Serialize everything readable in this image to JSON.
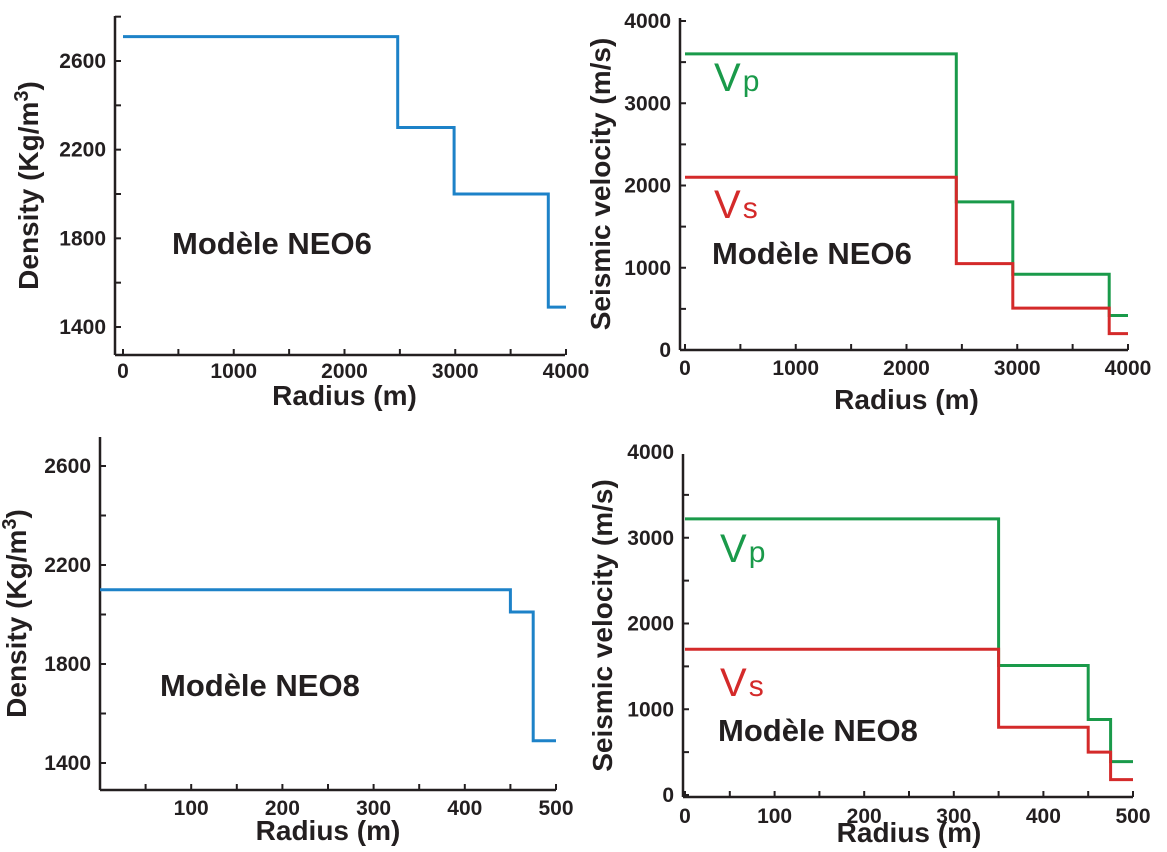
{
  "chart_data": [
    {
      "type": "line",
      "step": true,
      "label": "Modèle NEO6",
      "xlabel": "Radius (m)",
      "ylabel": "Density (Kg/m3)",
      "xlim": [
        0,
        4000
      ],
      "ylim": [
        1300,
        2800
      ],
      "xticks": [
        0,
        1000,
        2000,
        3000,
        4000
      ],
      "yticks": [
        1400,
        1800,
        2200,
        2600
      ],
      "series": [
        {
          "color": "#1d82c8",
          "x": [
            0,
            2480,
            2480,
            2990,
            2990,
            3840,
            3840,
            4000
          ],
          "y": [
            2710,
            2710,
            2300,
            2300,
            2000,
            2000,
            1490,
            1490
          ]
        }
      ]
    },
    {
      "type": "line",
      "step": true,
      "label": "Modèle NEO6",
      "xlabel": "Radius (m)",
      "ylabel": "Seismic velocity (m/s)",
      "xlim": [
        0,
        4000
      ],
      "ylim": [
        0,
        4000
      ],
      "xticks": [
        0,
        1000,
        2000,
        3000,
        4000
      ],
      "yticks": [
        0,
        1000,
        2000,
        3000,
        4000
      ],
      "series": [
        {
          "name": "V",
          "sub": "p",
          "color": "#1a9a4a",
          "x": [
            0,
            2450,
            2450,
            2960,
            2960,
            3830,
            3830,
            4000
          ],
          "y": [
            3600,
            3600,
            1800,
            1800,
            920,
            920,
            420,
            420
          ]
        },
        {
          "name": "V",
          "sub": "s",
          "color": "#d42a2a",
          "x": [
            0,
            2450,
            2450,
            2960,
            2960,
            3830,
            3830,
            4000
          ],
          "y": [
            2100,
            2100,
            1050,
            1050,
            510,
            510,
            200,
            200
          ]
        }
      ]
    },
    {
      "type": "line",
      "step": true,
      "label": "Modèle NEO8",
      "xlabel": "Radius (m)",
      "ylabel": "Density (Kg/m3)",
      "xlim": [
        0,
        500
      ],
      "ylim": [
        1300,
        2700
      ],
      "xticks": [
        100,
        200,
        300,
        400,
        500
      ],
      "yticks": [
        1400,
        1800,
        2200,
        2600
      ],
      "series": [
        {
          "color": "#1d82c8",
          "x": [
            0,
            450,
            450,
            475,
            475,
            500
          ],
          "y": [
            2100,
            2100,
            2010,
            2010,
            1490,
            1490
          ]
        }
      ]
    },
    {
      "type": "line",
      "step": true,
      "label": "Modèle NEO8",
      "xlabel": "Radius (m)",
      "ylabel": "Seismic velocity (m/s)",
      "xlim": [
        0,
        500
      ],
      "ylim": [
        0,
        4000
      ],
      "xticks": [
        0,
        100,
        200,
        300,
        400,
        500
      ],
      "yticks": [
        0,
        1000,
        2000,
        3000,
        4000
      ],
      "series": [
        {
          "name": "V",
          "sub": "p",
          "color": "#1a9a4a",
          "x": [
            0,
            350,
            350,
            450,
            450,
            475,
            475,
            500
          ],
          "y": [
            3220,
            3220,
            1510,
            1510,
            880,
            880,
            390,
            390
          ]
        },
        {
          "name": "V",
          "sub": "s",
          "color": "#d42a2a",
          "x": [
            0,
            350,
            350,
            450,
            450,
            475,
            475,
            500
          ],
          "y": [
            1700,
            1700,
            790,
            790,
            500,
            500,
            180,
            180
          ]
        }
      ]
    }
  ]
}
